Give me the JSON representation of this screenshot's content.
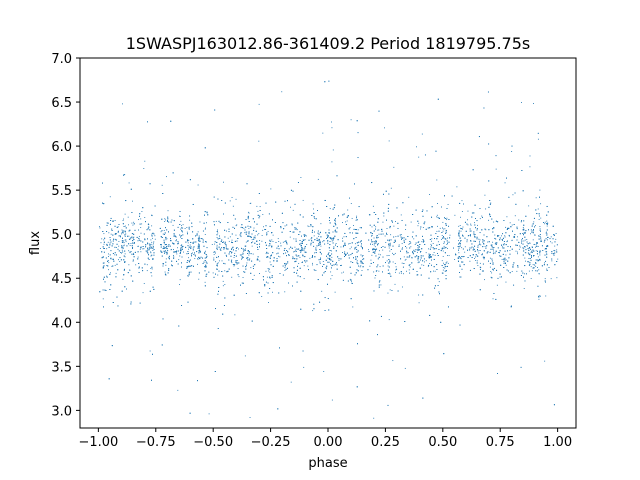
{
  "chart_data": {
    "type": "scatter",
    "title": "1SWASPJ163012.86-361409.2 Period 1819795.75s",
    "xlabel": "phase",
    "ylabel": "flux",
    "xlim": [
      -1.08,
      1.08
    ],
    "ylim": [
      2.8,
      7.0
    ],
    "xticks": [
      -1.0,
      -0.75,
      -0.5,
      -0.25,
      0.0,
      0.25,
      0.5,
      0.75,
      1.0
    ],
    "xtick_labels": [
      "−1.00",
      "−0.75",
      "−0.50",
      "−0.25",
      "0.00",
      "0.25",
      "0.50",
      "0.75",
      "1.00"
    ],
    "yticks": [
      3.0,
      3.5,
      4.0,
      4.5,
      5.0,
      5.5,
      6.0,
      6.5,
      7.0
    ],
    "ytick_labels": [
      "3.0",
      "3.5",
      "4.0",
      "4.5",
      "5.0",
      "5.5",
      "6.0",
      "6.5",
      "7.0"
    ],
    "grid": false,
    "point_color": "#1f77b4",
    "series": [
      {
        "x_range": [
          -1.0,
          1.0
        ],
        "y_median": 4.85,
        "y_typical_range": [
          4.3,
          5.4
        ],
        "y_outlier_range": [
          2.9,
          6.8
        ],
        "note_points": "dense scatter of several thousand points, symmetric about phase 0"
      }
    ]
  }
}
